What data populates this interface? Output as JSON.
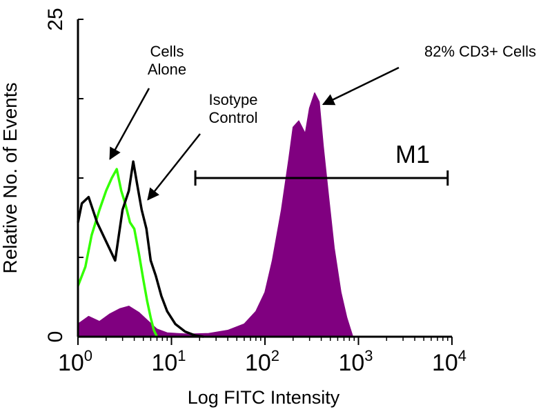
{
  "chart_data": {
    "type": "area",
    "title": "",
    "xlabel": "Log FITC Intensity",
    "ylabel": "Relative No. of Events",
    "x_scale": "log",
    "xlim": [
      1,
      10000
    ],
    "ylim": [
      0,
      25
    ],
    "x_ticks": [
      {
        "value": 1,
        "base": "10",
        "exp": "0"
      },
      {
        "value": 10,
        "base": "10",
        "exp": "1"
      },
      {
        "value": 100,
        "base": "10",
        "exp": "2"
      },
      {
        "value": 1000,
        "base": "10",
        "exp": "3"
      },
      {
        "value": 10000,
        "base": "10",
        "exp": "4"
      }
    ],
    "y_ticks": [
      {
        "value": 0,
        "label": "0"
      },
      {
        "value": 25,
        "label": "25"
      }
    ],
    "grid": false,
    "series": [
      {
        "id": "cd3",
        "color": "#800080",
        "fill": true,
        "points": [
          [
            1,
            1
          ],
          [
            1.3,
            1.6
          ],
          [
            1.7,
            1.2
          ],
          [
            2.2,
            1.8
          ],
          [
            2.8,
            2.2
          ],
          [
            3.5,
            2.4
          ],
          [
            4.5,
            1.9
          ],
          [
            5.5,
            1.3
          ],
          [
            7,
            0.6
          ],
          [
            9,
            0.3
          ],
          [
            15,
            0.2
          ],
          [
            25,
            0.25
          ],
          [
            40,
            0.5
          ],
          [
            60,
            1
          ],
          [
            80,
            2
          ],
          [
            100,
            3.5
          ],
          [
            120,
            6
          ],
          [
            150,
            10
          ],
          [
            180,
            14
          ],
          [
            200,
            16.5
          ],
          [
            230,
            17
          ],
          [
            270,
            16
          ],
          [
            300,
            18
          ],
          [
            340,
            19.2
          ],
          [
            380,
            18.5
          ],
          [
            420,
            15
          ],
          [
            480,
            11
          ],
          [
            550,
            7
          ],
          [
            650,
            3.5
          ],
          [
            750,
            1.5
          ],
          [
            870,
            0
          ]
        ]
      },
      {
        "id": "cells-alone",
        "color": "#33ff00",
        "fill": false,
        "points": [
          [
            1,
            4
          ],
          [
            1.2,
            5.5
          ],
          [
            1.4,
            8
          ],
          [
            1.7,
            10
          ],
          [
            2,
            11.5
          ],
          [
            2.3,
            12.5
          ],
          [
            2.6,
            13.2
          ],
          [
            2.9,
            11.5
          ],
          [
            3.2,
            10.5
          ],
          [
            3.6,
            9
          ],
          [
            4,
            8.5
          ],
          [
            4.5,
            6.5
          ],
          [
            5,
            4.5
          ],
          [
            5.5,
            2.8
          ],
          [
            6,
            1.5
          ],
          [
            6.5,
            0.5
          ],
          [
            7,
            0
          ]
        ]
      },
      {
        "id": "isotype-control",
        "color": "#000000",
        "fill": false,
        "points": [
          [
            1,
            9
          ],
          [
            1.1,
            10.5
          ],
          [
            1.3,
            11
          ],
          [
            1.6,
            9
          ],
          [
            2,
            7.5
          ],
          [
            2.5,
            6
          ],
          [
            3,
            10
          ],
          [
            3.5,
            11.5
          ],
          [
            3.9,
            13.8
          ],
          [
            4.3,
            12
          ],
          [
            4.8,
            10
          ],
          [
            5.4,
            8.5
          ],
          [
            6,
            6
          ],
          [
            6.8,
            4.8
          ],
          [
            7.8,
            3.2
          ],
          [
            9,
            2
          ],
          [
            11,
            1
          ],
          [
            14,
            0.4
          ],
          [
            18,
            0.1
          ],
          [
            22,
            0
          ]
        ]
      }
    ],
    "marker": {
      "label": "M1",
      "x_start": 18,
      "x_end": 9000,
      "y": 12.5
    },
    "annotations": [
      {
        "lines": [
          "Cells",
          "Alone"
        ],
        "arrow_to": [
          2.2,
          14
        ]
      },
      {
        "lines": [
          "Isotype",
          "Control"
        ],
        "arrow_to": [
          5.6,
          10.8
        ]
      },
      {
        "lines": [
          "82% CD3+ Cells"
        ],
        "arrow_to": [
          420,
          18.3
        ]
      }
    ]
  }
}
